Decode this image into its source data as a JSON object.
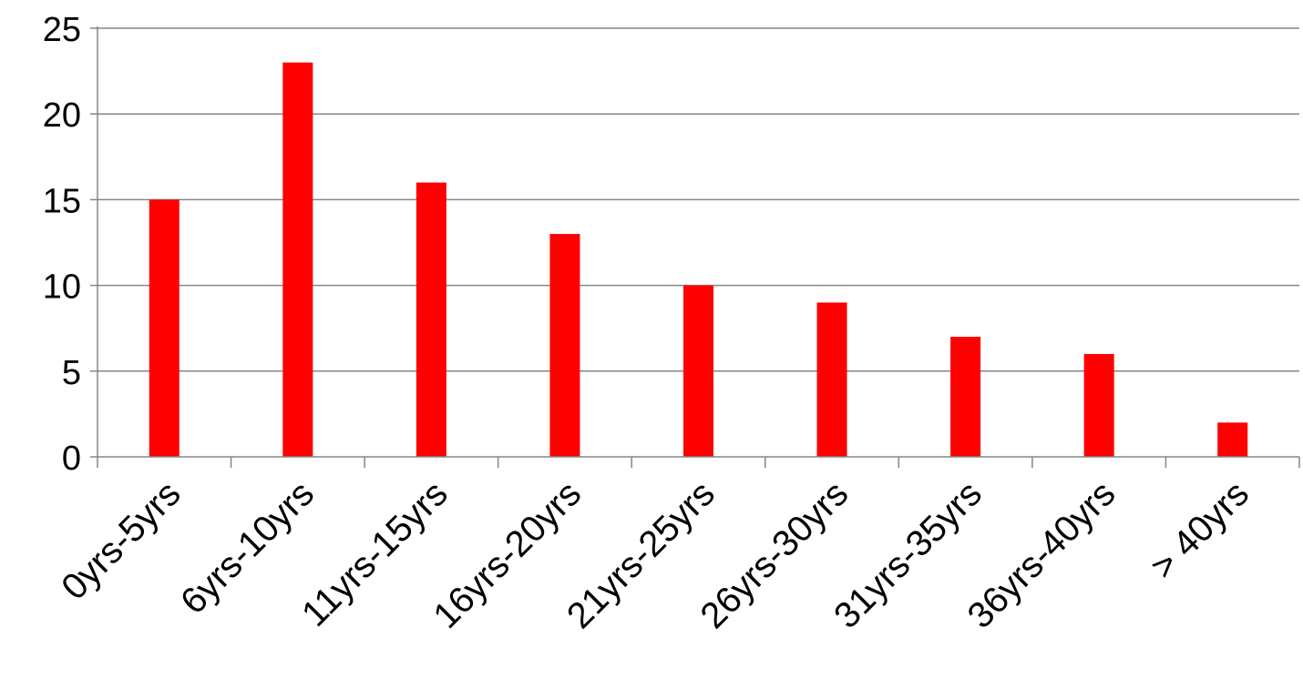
{
  "chart_data": {
    "type": "bar",
    "categories": [
      "0yrs-5yrs",
      "6yrs-10yrs",
      "11yrs-15yrs",
      "16yrs-20yrs",
      "21yrs-25yrs",
      "26yrs-30yrs",
      "31yrs-35yrs",
      "36yrs-40yrs",
      "> 40yrs"
    ],
    "values": [
      15,
      23,
      16,
      13,
      10,
      9,
      7,
      6,
      2
    ],
    "title": "",
    "xlabel": "",
    "ylabel": "",
    "ylim": [
      0,
      25
    ],
    "yticks": [
      0,
      5,
      10,
      15,
      20,
      25
    ],
    "grid": true,
    "legend": "none",
    "bar_color": "#ff0000",
    "grid_color": "#868686"
  }
}
